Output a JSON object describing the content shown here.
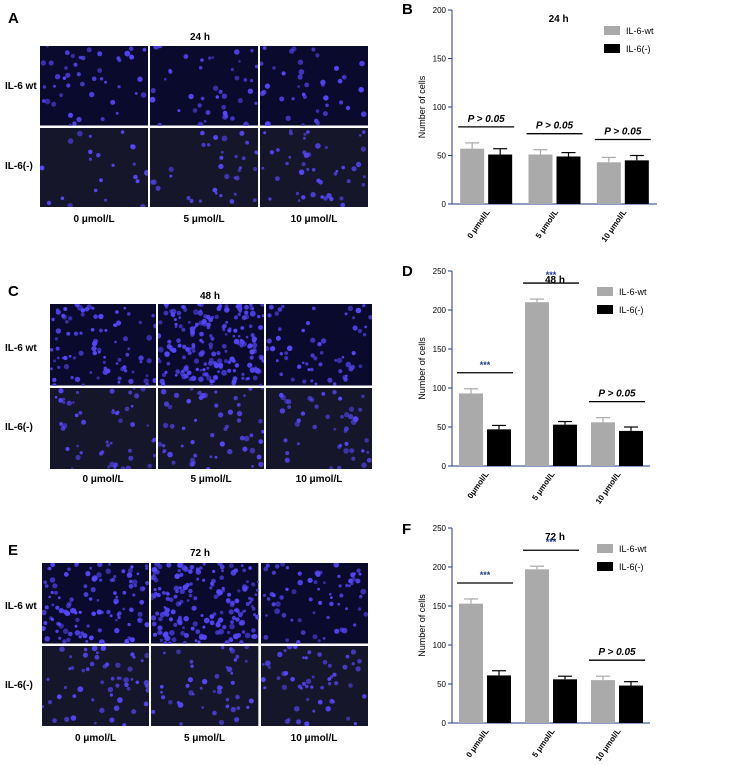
{
  "panels": {
    "a": {
      "letter": "A",
      "title": "24 h",
      "rows": [
        "IL-6 wt",
        "IL-6(-)"
      ],
      "cols": [
        "0 μmol/L",
        "5 μmol/L",
        "10 μmol/L"
      ],
      "density": [
        [
          45,
          42,
          40
        ],
        [
          22,
          34,
          46
        ]
      ]
    },
    "c": {
      "letter": "C",
      "title": "48 h",
      "rows": [
        "IL-6 wt",
        "IL-6(-)"
      ],
      "cols": [
        "0 μmol/L",
        "5 μmol/L",
        "10 μmol/L"
      ],
      "density": [
        [
          85,
          190,
          60
        ],
        [
          50,
          58,
          45
        ]
      ]
    },
    "e": {
      "letter": "E",
      "title": "72 h",
      "rows": [
        "IL-6 wt",
        "IL-6(-)"
      ],
      "cols": [
        "0 μmol/L",
        "5 μmol/L",
        "10 μmol/L"
      ],
      "density": [
        [
          120,
          185,
          70
        ],
        [
          55,
          45,
          55
        ]
      ]
    }
  },
  "colors": {
    "fluorescence": "#5548ff",
    "wt_bar": "#aaaaaa",
    "ko_bar": "#000000",
    "axis": "#1e3a8a",
    "stars": "#1e3a8a"
  },
  "chart_data": [
    {
      "letter": "B",
      "type": "bar",
      "title": "24 h",
      "ylabel": "Number of cells",
      "ylim": [
        0,
        200
      ],
      "yticks": [
        0,
        50,
        100,
        150,
        200
      ],
      "categories": [
        "0 μmol/L",
        "5 μmol/L",
        "10 μmol/L"
      ],
      "series": [
        {
          "name": "IL-6-wt",
          "values": [
            57,
            51,
            43
          ],
          "errors": [
            6,
            5,
            5
          ]
        },
        {
          "name": "IL-6(-)",
          "values": [
            51,
            49,
            45
          ],
          "errors": [
            6,
            4,
            5
          ]
        }
      ],
      "significance": [
        "P > 0.05",
        "P > 0.05",
        "P > 0.05"
      ]
    },
    {
      "letter": "D",
      "type": "bar",
      "title": "48 h",
      "ylabel": "Number of cells",
      "ylim": [
        0,
        250
      ],
      "yticks": [
        0,
        50,
        100,
        150,
        200,
        250
      ],
      "categories": [
        "0μmol/L",
        "5 μmol/L",
        "10 μmol/L"
      ],
      "series": [
        {
          "name": "IL-6-wt",
          "values": [
            93,
            210,
            56
          ],
          "errors": [
            6,
            4,
            6
          ]
        },
        {
          "name": "IL-6(-)",
          "values": [
            47,
            53,
            45
          ],
          "errors": [
            5,
            4,
            5
          ]
        }
      ],
      "significance": [
        "***",
        "***",
        "P > 0.05"
      ]
    },
    {
      "letter": "F",
      "type": "bar",
      "title": "72 h",
      "ylabel": "Number of cells",
      "ylim": [
        0,
        250
      ],
      "yticks": [
        0,
        50,
        100,
        150,
        200,
        250
      ],
      "categories": [
        "0 μmol/L",
        "5 μmol/L",
        "10 μmol/L"
      ],
      "series": [
        {
          "name": "IL-6-wt",
          "values": [
            153,
            197,
            55
          ],
          "errors": [
            6,
            4,
            5
          ]
        },
        {
          "name": "IL-6(-)",
          "values": [
            61,
            56,
            48
          ],
          "errors": [
            6,
            4,
            5
          ]
        }
      ],
      "significance": [
        "***",
        "***",
        "P > 0.05"
      ]
    }
  ]
}
